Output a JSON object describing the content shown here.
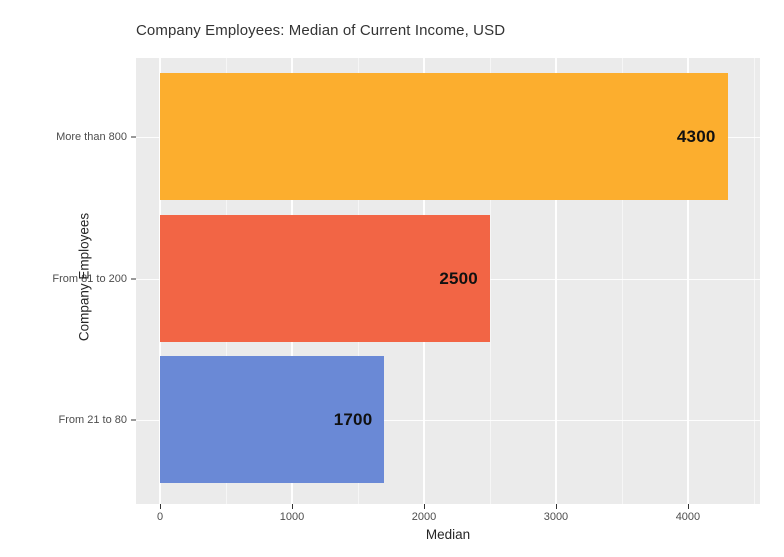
{
  "title": "Company Employees: Median of Current Income, USD",
  "chart_data": {
    "type": "bar",
    "orientation": "horizontal",
    "title": "Company Employees: Median of Current Income, USD",
    "xlabel": "Median",
    "ylabel": "Company Employees",
    "categories": [
      "More than 800",
      "From 81 to 200",
      "From 21 to 80"
    ],
    "values": [
      4300,
      2500,
      1700
    ],
    "bar_labels": [
      "4300",
      "2500",
      "1700"
    ],
    "bar_colors": [
      "#FCAE2E",
      "#F26545",
      "#6A89D6"
    ],
    "xlim": [
      -182,
      4546
    ],
    "x_major_ticks": [
      0,
      1000,
      2000,
      3000,
      4000
    ],
    "x_major_tick_labels": [
      "0",
      "1000",
      "2000",
      "3000",
      "4000"
    ],
    "x_minor_ticks": [
      500,
      1500,
      2500,
      3500,
      4500
    ],
    "grid": true,
    "legend": "none",
    "panel_bg": "#EBEBEB",
    "grid_color": "#FFFFFF",
    "tick_text_color": "#4D4D4D",
    "axis_title_color": "#262626",
    "value_label_color": "#111111"
  }
}
